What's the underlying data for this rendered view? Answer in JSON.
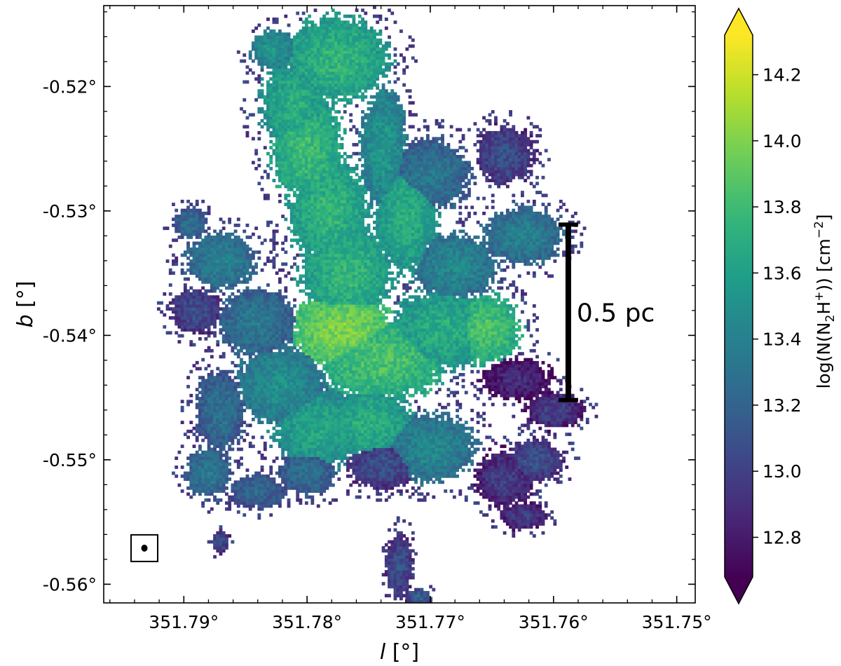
{
  "chart_data": {
    "type": "heatmap",
    "description_free": true,
    "xlabel_var": "l",
    "xlabel_unit": " [°]",
    "ylabel_var": "b",
    "ylabel_unit": " [°]",
    "xlim": [
      351.7965,
      351.7485
    ],
    "ylim": [
      -0.5615,
      -0.5135
    ],
    "x_ticks": [
      {
        "value": 351.79,
        "label": "351.79°"
      },
      {
        "value": 351.78,
        "label": "351.78°"
      },
      {
        "value": 351.77,
        "label": "351.77°"
      },
      {
        "value": 351.76,
        "label": "351.76°"
      },
      {
        "value": 351.75,
        "label": "351.75°"
      }
    ],
    "y_ticks": [
      {
        "value": -0.52,
        "label": "-0.52°"
      },
      {
        "value": -0.53,
        "label": "-0.53°"
      },
      {
        "value": -0.54,
        "label": "-0.54°"
      },
      {
        "value": -0.55,
        "label": "-0.55°"
      },
      {
        "value": -0.56,
        "label": "-0.56°"
      }
    ],
    "colorbar": {
      "label_prefix": "log(N(N",
      "label_sub1": "2",
      "label_mid": "H",
      "label_sup1": "+",
      "label_mid2": ")) [cm",
      "label_sup2": "−2",
      "label_suffix": "]",
      "colormap": "viridis",
      "range": [
        12.68,
        14.32
      ],
      "extend": "both",
      "ticks": [
        {
          "value": 12.8,
          "label": "12.8"
        },
        {
          "value": 13.0,
          "label": "13.0"
        },
        {
          "value": 13.2,
          "label": "13.2"
        },
        {
          "value": 13.4,
          "label": "13.4"
        },
        {
          "value": 13.6,
          "label": "13.6"
        },
        {
          "value": 13.8,
          "label": "13.8"
        },
        {
          "value": 14.0,
          "label": "14.0"
        },
        {
          "value": 14.2,
          "label": "14.2"
        }
      ]
    },
    "scale_bar": {
      "label": "0.5 pc",
      "l": 351.7588,
      "b_top": -0.5311,
      "b_bottom": -0.5452
    },
    "beam": {
      "l": 351.7932,
      "b": -0.5571
    },
    "emission_regions": [
      {
        "l": 351.7776,
        "b": -0.5178,
        "rl": 0.0045,
        "rb": 0.0037,
        "v": 13.75
      },
      {
        "l": 351.7827,
        "b": -0.517,
        "rl": 0.002,
        "rb": 0.0018,
        "v": 13.55
      },
      {
        "l": 351.781,
        "b": -0.5215,
        "rl": 0.003,
        "rb": 0.004,
        "v": 13.7
      },
      {
        "l": 351.78,
        "b": -0.525,
        "rl": 0.0032,
        "rb": 0.0045,
        "v": 13.8
      },
      {
        "l": 351.7782,
        "b": -0.53,
        "rl": 0.0035,
        "rb": 0.0045,
        "v": 13.75
      },
      {
        "l": 351.7768,
        "b": -0.535,
        "rl": 0.004,
        "rb": 0.0045,
        "v": 13.75
      },
      {
        "l": 351.7772,
        "b": -0.5395,
        "rl": 0.0045,
        "rb": 0.0035,
        "v": 14.0
      },
      {
        "l": 351.7738,
        "b": -0.525,
        "rl": 0.002,
        "rb": 0.0055,
        "v": 13.55
      },
      {
        "l": 351.772,
        "b": -0.5305,
        "rl": 0.0028,
        "rb": 0.005,
        "v": 13.7
      },
      {
        "l": 351.77,
        "b": -0.527,
        "rl": 0.0035,
        "rb": 0.003,
        "v": 13.35
      },
      {
        "l": 351.774,
        "b": -0.542,
        "rl": 0.0055,
        "rb": 0.0035,
        "v": 13.85
      },
      {
        "l": 351.769,
        "b": -0.5395,
        "rl": 0.0045,
        "rb": 0.0035,
        "v": 13.7
      },
      {
        "l": 351.768,
        "b": -0.5345,
        "rl": 0.0035,
        "rb": 0.003,
        "v": 13.45
      },
      {
        "l": 351.7655,
        "b": -0.5395,
        "rl": 0.003,
        "rb": 0.003,
        "v": 13.85
      },
      {
        "l": 351.7625,
        "b": -0.532,
        "rl": 0.0035,
        "rb": 0.0025,
        "v": 13.4
      },
      {
        "l": 351.764,
        "b": -0.5255,
        "rl": 0.0025,
        "rb": 0.0025,
        "v": 13.1
      },
      {
        "l": 351.763,
        "b": -0.5435,
        "rl": 0.003,
        "rb": 0.0018,
        "v": 12.9
      },
      {
        "l": 351.76,
        "b": -0.546,
        "rl": 0.0025,
        "rb": 0.0016,
        "v": 13.0
      },
      {
        "l": 351.7615,
        "b": -0.55,
        "rl": 0.0025,
        "rb": 0.0018,
        "v": 13.1
      },
      {
        "l": 351.764,
        "b": -0.5515,
        "rl": 0.0025,
        "rb": 0.0025,
        "v": 13.0
      },
      {
        "l": 351.77,
        "b": -0.549,
        "rl": 0.004,
        "rb": 0.003,
        "v": 13.45
      },
      {
        "l": 351.775,
        "b": -0.547,
        "rl": 0.004,
        "rb": 0.003,
        "v": 13.7
      },
      {
        "l": 351.779,
        "b": -0.5475,
        "rl": 0.004,
        "rb": 0.0035,
        "v": 13.65
      },
      {
        "l": 351.782,
        "b": -0.544,
        "rl": 0.004,
        "rb": 0.0035,
        "v": 13.5
      },
      {
        "l": 351.784,
        "b": -0.539,
        "rl": 0.0035,
        "rb": 0.003,
        "v": 13.35
      },
      {
        "l": 351.787,
        "b": -0.534,
        "rl": 0.003,
        "rb": 0.0025,
        "v": 13.4
      },
      {
        "l": 351.789,
        "b": -0.538,
        "rl": 0.0022,
        "rb": 0.002,
        "v": 13.1
      },
      {
        "l": 351.7895,
        "b": -0.531,
        "rl": 0.0015,
        "rb": 0.0014,
        "v": 13.3
      },
      {
        "l": 351.787,
        "b": -0.546,
        "rl": 0.0022,
        "rb": 0.0035,
        "v": 13.3
      },
      {
        "l": 351.788,
        "b": -0.551,
        "rl": 0.002,
        "rb": 0.0022,
        "v": 13.35
      },
      {
        "l": 351.784,
        "b": -0.5525,
        "rl": 0.0025,
        "rb": 0.0015,
        "v": 13.25
      },
      {
        "l": 351.78,
        "b": -0.551,
        "rl": 0.0025,
        "rb": 0.002,
        "v": 13.3
      },
      {
        "l": 351.774,
        "b": -0.5505,
        "rl": 0.003,
        "rb": 0.002,
        "v": 13.1
      },
      {
        "l": 351.7725,
        "b": -0.5585,
        "rl": 0.0012,
        "rb": 0.0028,
        "v": 13.1
      },
      {
        "l": 351.771,
        "b": -0.561,
        "rl": 0.001,
        "rb": 0.0008,
        "v": 13.2
      },
      {
        "l": 351.7625,
        "b": -0.5545,
        "rl": 0.002,
        "rb": 0.0012,
        "v": 13.0
      },
      {
        "l": 351.787,
        "b": -0.5565,
        "rl": 0.0008,
        "rb": 0.001,
        "v": 13.1
      }
    ]
  }
}
